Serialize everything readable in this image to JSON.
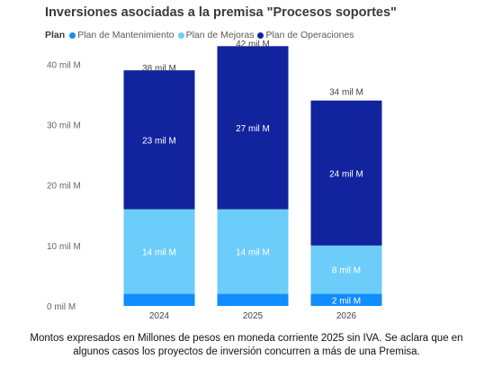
{
  "chart_data": {
    "type": "bar",
    "stacked": true,
    "title": "Inversiones asociadas a la premisa \"Procesos soportes\"",
    "legend_title": "Plan",
    "categories": [
      "2024",
      "2025",
      "2026"
    ],
    "series": [
      {
        "name": "Plan de Mantenimiento",
        "color": "#118dff",
        "values": [
          2,
          2,
          2
        ],
        "data_labels": [
          "",
          "",
          "2 mil M"
        ]
      },
      {
        "name": "Plan de Mejoras",
        "color": "#6ccdfa",
        "values": [
          14,
          14,
          8
        ],
        "data_labels": [
          "14 mil M",
          "14 mil M",
          "8 mil M"
        ]
      },
      {
        "name": "Plan de Operaciones",
        "color": "#12239e",
        "values": [
          23,
          27,
          24
        ],
        "data_labels": [
          "23 mil M",
          "27 mil M",
          "24 mil M"
        ]
      }
    ],
    "totals": [
      38,
      42,
      34
    ],
    "total_labels": [
      "38 mil M",
      "42 mil M",
      "34 mil M"
    ],
    "y_ticks": [
      0,
      10,
      20,
      30,
      40
    ],
    "y_tick_labels": [
      "0 mil M",
      "10 mil M",
      "20 mil M",
      "30 mil M",
      "40 mil M"
    ],
    "ylim": [
      0,
      42
    ],
    "grid": false,
    "legend_position": "top-left"
  },
  "footnote": {
    "line1": "Montos expresados en Millones de pesos en moneda corriente 2025 sin IVA. Se aclara que en",
    "line2": "algunos casos los proyectos de inversión concurren a más de una Premisa."
  }
}
